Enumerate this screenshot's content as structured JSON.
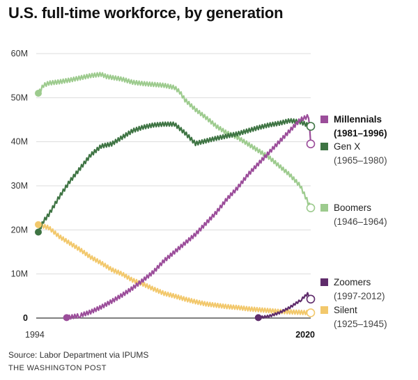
{
  "header": {
    "title": "U.S. full-time workforce, by generation"
  },
  "footer": {
    "source": "Source: Labor Department via IPUMS",
    "credit": "THE WASHINGTON POST"
  },
  "chart_data": {
    "type": "line",
    "title": "U.S. full-time workforce, by generation",
    "xlabel": "",
    "ylabel": "",
    "xlim": [
      1994,
      2020.5
    ],
    "ylim": [
      0,
      60
    ],
    "yunit": "millions",
    "grid": true,
    "legend": "right",
    "y_ticks": [
      {
        "value": 60,
        "label": "60M"
      },
      {
        "value": 50,
        "label": "50M"
      },
      {
        "value": 40,
        "label": "40M"
      },
      {
        "value": 30,
        "label": "30M"
      },
      {
        "value": 20,
        "label": "20M"
      },
      {
        "value": 10,
        "label": "10M"
      },
      {
        "value": 0,
        "label": "0",
        "bold": true
      }
    ],
    "x_ticks": [
      {
        "value": 1994,
        "label": "1994"
      },
      {
        "value": 2020,
        "label": "2020",
        "bold": true
      }
    ],
    "series": [
      {
        "name": "Boomers",
        "range": "(1946–1964)",
        "color": "#9dcb8e",
        "bold": false,
        "points": [
          [
            1994,
            51
          ],
          [
            1994.5,
            52.8
          ],
          [
            1995,
            53.3
          ],
          [
            1996,
            53.6
          ],
          [
            1997,
            54
          ],
          [
            1998,
            54.5
          ],
          [
            1999,
            55
          ],
          [
            2000,
            55.3
          ],
          [
            2000.5,
            54.8
          ],
          [
            2001,
            54.6
          ],
          [
            2002,
            54.2
          ],
          [
            2003,
            53.5
          ],
          [
            2004,
            53.2
          ],
          [
            2005,
            53
          ],
          [
            2006,
            52.8
          ],
          [
            2007,
            52.3
          ],
          [
            2007.5,
            51.3
          ],
          [
            2008,
            49.5
          ],
          [
            2009,
            47.3
          ],
          [
            2010,
            45.5
          ],
          [
            2011,
            43.5
          ],
          [
            2012,
            42
          ],
          [
            2013,
            41
          ],
          [
            2014,
            39.5
          ],
          [
            2015,
            38
          ],
          [
            2016,
            36.5
          ],
          [
            2017,
            34.5
          ],
          [
            2018,
            32.5
          ],
          [
            2019,
            30
          ],
          [
            2020,
            25
          ]
        ]
      },
      {
        "name": "Gen X",
        "range": "(1965–1980)",
        "color": "#3e7443",
        "bold": false,
        "points": [
          [
            1994,
            19.5
          ],
          [
            1994.5,
            22
          ],
          [
            1995,
            23.5
          ],
          [
            1996,
            27.5
          ],
          [
            1997,
            31
          ],
          [
            1998,
            34
          ],
          [
            1999,
            37
          ],
          [
            2000,
            39
          ],
          [
            2001,
            39.5
          ],
          [
            2002,
            41
          ],
          [
            2003,
            42.5
          ],
          [
            2004,
            43.3
          ],
          [
            2005,
            43.8
          ],
          [
            2006,
            44
          ],
          [
            2007,
            44
          ],
          [
            2008,
            42
          ],
          [
            2009,
            39.6
          ],
          [
            2010,
            40.2
          ],
          [
            2011,
            40.8
          ],
          [
            2012,
            41.3
          ],
          [
            2013,
            41.8
          ],
          [
            2014,
            42.5
          ],
          [
            2015,
            43.2
          ],
          [
            2016,
            43.8
          ],
          [
            2017,
            44.2
          ],
          [
            2018,
            44.8
          ],
          [
            2019,
            44.5
          ],
          [
            2020,
            43.5
          ]
        ]
      },
      {
        "name": "Millennials",
        "range": "(1981–1996)",
        "color": "#9b4d9a",
        "bold": true,
        "points": [
          [
            1996.7,
            0.1
          ],
          [
            1998,
            0.6
          ],
          [
            1999,
            1.4
          ],
          [
            2000,
            2.5
          ],
          [
            2001,
            3.8
          ],
          [
            2002,
            5.2
          ],
          [
            2003,
            6.8
          ],
          [
            2004,
            8.6
          ],
          [
            2005,
            10.5
          ],
          [
            2006,
            13
          ],
          [
            2007,
            15
          ],
          [
            2008,
            17
          ],
          [
            2009,
            19
          ],
          [
            2010,
            21.5
          ],
          [
            2011,
            24
          ],
          [
            2012,
            27
          ],
          [
            2013,
            29.5
          ],
          [
            2014,
            32.5
          ],
          [
            2015,
            35
          ],
          [
            2016,
            37.5
          ],
          [
            2017,
            40
          ],
          [
            2018,
            42.5
          ],
          [
            2019,
            45
          ],
          [
            2019.8,
            45.8
          ],
          [
            2020,
            39.5
          ]
        ]
      },
      {
        "name": "Zoomers",
        "range": "(1997-2012)",
        "color": "#5f2c6b",
        "bold": false,
        "points": [
          [
            2015,
            0.1
          ],
          [
            2016,
            0.4
          ],
          [
            2017,
            1.2
          ],
          [
            2018,
            2.4
          ],
          [
            2019,
            4
          ],
          [
            2019.7,
            5.5
          ],
          [
            2020,
            4.3
          ]
        ]
      },
      {
        "name": "Silent",
        "range": "(1925–1945)",
        "color": "#f2c86c",
        "bold": false,
        "points": [
          [
            1994,
            21.2
          ],
          [
            1995,
            20.5
          ],
          [
            1996,
            18.5
          ],
          [
            1997,
            17
          ],
          [
            1998,
            15.5
          ],
          [
            1999,
            13.8
          ],
          [
            2000,
            12.5
          ],
          [
            2001,
            11
          ],
          [
            2002,
            10
          ],
          [
            2003,
            8.6
          ],
          [
            2004,
            7.7
          ],
          [
            2005,
            6.6
          ],
          [
            2006,
            5.6
          ],
          [
            2007,
            5
          ],
          [
            2008,
            4.3
          ],
          [
            2009,
            3.7
          ],
          [
            2010,
            3.2
          ],
          [
            2011,
            2.9
          ],
          [
            2012,
            2.6
          ],
          [
            2013,
            2.4
          ],
          [
            2014,
            2.1
          ],
          [
            2015,
            1.9
          ],
          [
            2016,
            1.7
          ],
          [
            2017,
            1.5
          ],
          [
            2018,
            1.4
          ],
          [
            2019,
            1.3
          ],
          [
            2020,
            1.2
          ]
        ]
      }
    ]
  }
}
